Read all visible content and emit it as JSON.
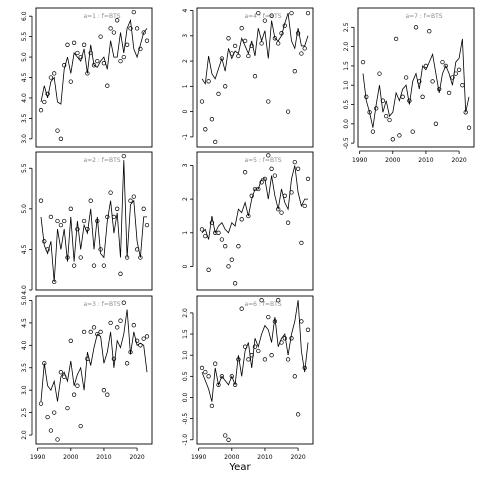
{
  "chart_data": {
    "type": "scatter",
    "xlabel": "Year",
    "x_ticks": [
      1990,
      2000,
      2010,
      2020
    ],
    "panels": [
      {
        "label": "a=1 : f=BTS",
        "ylim": [
          2.8,
          6.2
        ],
        "y_ticks": [
          3.0,
          3.5,
          4.0,
          4.5,
          5.0,
          5.5,
          6.0
        ],
        "x": [
          1991,
          1992,
          1993,
          1994,
          1995,
          1996,
          1997,
          1998,
          1999,
          2000,
          2001,
          2002,
          2003,
          2004,
          2005,
          2006,
          2007,
          2008,
          2009,
          2010,
          2011,
          2012,
          2013,
          2014,
          2015,
          2016,
          2017,
          2018,
          2019,
          2020,
          2021,
          2022,
          2023
        ],
        "fit": [
          3.9,
          4.3,
          4.0,
          4.4,
          4.5,
          3.9,
          3.85,
          4.7,
          5.0,
          4.6,
          5.1,
          5.0,
          4.9,
          5.2,
          4.6,
          5.3,
          4.8,
          4.75,
          4.9,
          5.0,
          4.7,
          5.4,
          5.0,
          5.0,
          5.6,
          5.1,
          5.7,
          5.9,
          5.2,
          5.0,
          5.3,
          5.6,
          5.7
        ],
        "observed": [
          3.7,
          3.9,
          4.1,
          4.5,
          4.6,
          3.2,
          3.0,
          4.8,
          5.3,
          4.4,
          5.35,
          5.1,
          5.0,
          5.3,
          4.6,
          5.1,
          4.8,
          4.9,
          5.5,
          4.85,
          4.3,
          5.7,
          5.6,
          5.9,
          4.9,
          5.0,
          5.3,
          5.7,
          6.1,
          5.7,
          5.2,
          5.6,
          5.4
        ]
      },
      {
        "label": "a=2 : f=BTS",
        "ylim": [
          4.0,
          5.7
        ],
        "y_ticks": [
          4.0,
          4.5,
          5.0,
          5.5
        ],
        "x": [
          1991,
          1992,
          1993,
          1994,
          1995,
          1996,
          1997,
          1998,
          1999,
          2000,
          2001,
          2002,
          2003,
          2004,
          2005,
          2006,
          2007,
          2008,
          2009,
          2010,
          2011,
          2012,
          2013,
          2014,
          2015,
          2016,
          2017,
          2018,
          2019,
          2020,
          2021,
          2022,
          2023
        ],
        "fit": [
          4.9,
          4.55,
          4.45,
          4.6,
          4.1,
          4.75,
          4.5,
          4.75,
          4.35,
          4.9,
          4.35,
          4.85,
          4.5,
          4.8,
          4.7,
          5.0,
          4.5,
          4.9,
          4.45,
          4.4,
          4.85,
          5.1,
          4.7,
          4.95,
          4.4,
          5.6,
          4.4,
          5.05,
          5.1,
          4.6,
          4.4,
          4.9,
          4.9
        ],
        "observed": [
          5.1,
          4.6,
          4.5,
          4.9,
          4.1,
          4.85,
          4.8,
          4.85,
          4.4,
          5.0,
          4.3,
          4.75,
          4.4,
          4.85,
          4.75,
          5.1,
          4.3,
          4.85,
          4.5,
          4.3,
          4.9,
          5.2,
          4.9,
          5.0,
          4.2,
          5.65,
          4.4,
          5.1,
          5.15,
          4.5,
          4.4,
          5.0,
          4.8
        ]
      },
      {
        "label": "a=3 : f=BTS",
        "ylim": [
          1.8,
          5.1
        ],
        "y_ticks": [
          2.0,
          2.5,
          3.0,
          3.5,
          4.0,
          4.5,
          5.0
        ],
        "x": [
          1991,
          1992,
          1993,
          1994,
          1995,
          1996,
          1997,
          1998,
          1999,
          2000,
          2001,
          2002,
          2003,
          2004,
          2005,
          2006,
          2007,
          2008,
          2009,
          2010,
          2011,
          2012,
          2013,
          2014,
          2015,
          2016,
          2017,
          2018,
          2019,
          2020,
          2021,
          2022,
          2023
        ],
        "fit": [
          2.75,
          3.6,
          3.1,
          3.0,
          3.2,
          2.75,
          3.3,
          3.4,
          3.2,
          3.65,
          3.1,
          3.35,
          3.5,
          3.0,
          3.85,
          3.55,
          3.95,
          4.25,
          4.2,
          3.6,
          3.85,
          4.3,
          3.5,
          4.1,
          3.95,
          4.25,
          4.8,
          3.8,
          4.3,
          4.0,
          4.05,
          4.0,
          3.4
        ],
        "observed": [
          2.7,
          3.6,
          2.4,
          2.1,
          2.5,
          1.9,
          3.4,
          3.3,
          2.6,
          4.1,
          2.9,
          3.1,
          2.2,
          4.3,
          3.7,
          4.3,
          4.4,
          4.25,
          4.3,
          3.0,
          2.9,
          4.5,
          3.7,
          4.4,
          4.55,
          4.95,
          3.6,
          3.85,
          4.45,
          4.1,
          4.0,
          4.15,
          4.2
        ]
      },
      {
        "label": "a=4 : f=BTS",
        "ylim": [
          -1.4,
          4.1
        ],
        "y_ticks": [
          -1,
          0,
          1,
          2,
          3,
          4
        ],
        "x": [
          1991,
          1992,
          1993,
          1994,
          1995,
          1996,
          1997,
          1998,
          1999,
          2000,
          2001,
          2002,
          2003,
          2004,
          2005,
          2006,
          2007,
          2008,
          2009,
          2010,
          2011,
          2012,
          2013,
          2014,
          2015,
          2016,
          2017,
          2018,
          2019,
          2020,
          2021,
          2022,
          2023
        ],
        "fit": [
          1.3,
          1.1,
          2.2,
          1.5,
          1.3,
          1.7,
          2.1,
          1.6,
          2.5,
          2.1,
          2.4,
          2.3,
          2.9,
          2.6,
          2.3,
          2.8,
          2.2,
          3.3,
          2.8,
          3.2,
          2.1,
          3.6,
          2.9,
          2.8,
          3.0,
          3.5,
          3.9,
          2.8,
          2.5,
          3.3,
          2.6,
          2.6,
          3.0
        ],
        "observed": [
          0.4,
          -0.7,
          1.2,
          -0.3,
          -1.2,
          0.7,
          2.1,
          1.0,
          2.9,
          2.3,
          2.6,
          2.2,
          3.3,
          2.8,
          2.2,
          2.6,
          1.4,
          3.9,
          2.7,
          3.6,
          0.4,
          3.8,
          2.9,
          2.7,
          3.1,
          3.4,
          0.0,
          3.9,
          1.6,
          3.1,
          2.3,
          2.5,
          3.9
        ]
      },
      {
        "label": "a=5 : f=BTS",
        "ylim": [
          -0.7,
          3.4
        ],
        "y_ticks": [
          0,
          1,
          2,
          3
        ],
        "x": [
          1991,
          1992,
          1993,
          1994,
          1995,
          1996,
          1997,
          1998,
          1999,
          2000,
          2001,
          2002,
          2003,
          2004,
          2005,
          2006,
          2007,
          2008,
          2009,
          2010,
          2011,
          2012,
          2013,
          2014,
          2015,
          2016,
          2017,
          2018,
          2019,
          2020,
          2021,
          2022,
          2023
        ],
        "fit": [
          1.0,
          1.1,
          0.8,
          1.5,
          1.0,
          1.2,
          1.3,
          1.1,
          1.0,
          1.3,
          1.2,
          1.7,
          1.6,
          1.9,
          1.5,
          2.0,
          2.3,
          2.3,
          2.6,
          2.6,
          2.0,
          2.7,
          2.1,
          1.7,
          2.3,
          1.9,
          1.7,
          2.6,
          3.0,
          2.2,
          1.8,
          2.0,
          2.0
        ],
        "observed": [
          1.1,
          0.9,
          -0.1,
          1.3,
          1.0,
          1.0,
          0.8,
          0.6,
          0.0,
          0.2,
          -0.5,
          0.6,
          1.4,
          2.8,
          1.5,
          2.1,
          2.3,
          2.3,
          2.5,
          2.6,
          3.3,
          2.9,
          2.7,
          1.7,
          1.6,
          2.1,
          1.3,
          2.2,
          3.1,
          2.9,
          0.7,
          1.8,
          2.6
        ]
      },
      {
        "label": "a=6 : f=BTS",
        "ylim": [
          -1.1,
          2.4
        ],
        "y_ticks": [
          -1.0,
          -0.5,
          0.0,
          0.5,
          1.0,
          1.5,
          2.0
        ],
        "x": [
          1991,
          1992,
          1993,
          1994,
          1995,
          1996,
          1997,
          1998,
          1999,
          2000,
          2001,
          2002,
          2003,
          2004,
          2005,
          2006,
          2007,
          2008,
          2009,
          2010,
          2011,
          2012,
          2013,
          2014,
          2015,
          2016,
          2017,
          2018,
          2019,
          2020,
          2021,
          2022,
          2023
        ],
        "fit": [
          0.6,
          0.4,
          0.2,
          -0.1,
          0.7,
          0.3,
          0.5,
          0.4,
          0.3,
          0.5,
          0.3,
          1.0,
          0.5,
          1.1,
          1.3,
          0.7,
          1.4,
          1.2,
          1.5,
          1.7,
          1.6,
          1.3,
          1.9,
          1.2,
          1.4,
          1.5,
          1.0,
          1.5,
          1.8,
          2.3,
          1.1,
          0.6,
          1.3
        ],
        "observed": [
          0.7,
          0.6,
          0.5,
          -0.2,
          0.8,
          0.3,
          0.5,
          -0.9,
          -1.0,
          0.5,
          0.3,
          0.9,
          2.1,
          1.2,
          0.9,
          1.0,
          1.2,
          1.1,
          2.3,
          0.9,
          1.9,
          1.0,
          1.8,
          2.3,
          1.3,
          1.4,
          0.9,
          1.4,
          0.5,
          -0.4,
          1.8,
          0.7,
          1.6
        ]
      },
      {
        "label": "a=7 : f=BTS",
        "ylim": [
          -0.6,
          3.0
        ],
        "y_ticks": [
          -0.5,
          0.0,
          0.5,
          1.0,
          1.5,
          2.0,
          2.5
        ],
        "x": [
          1991,
          1992,
          1993,
          1994,
          1995,
          1996,
          1997,
          1998,
          1999,
          2000,
          2001,
          2002,
          2003,
          2004,
          2005,
          2006,
          2007,
          2008,
          2009,
          2010,
          2011,
          2012,
          2013,
          2014,
          2015,
          2016,
          2017,
          2018,
          2019,
          2020,
          2021,
          2022,
          2023
        ],
        "fit": [
          1.3,
          0.6,
          0.3,
          -0.1,
          0.5,
          1.0,
          0.3,
          0.6,
          0.2,
          0.3,
          0.8,
          0.6,
          0.9,
          1.0,
          0.5,
          1.1,
          1.3,
          0.9,
          1.5,
          1.4,
          1.6,
          1.8,
          1.3,
          0.8,
          1.3,
          1.5,
          1.3,
          1.0,
          1.6,
          1.7,
          2.2,
          0.3,
          0.7
        ],
        "observed": [
          1.6,
          0.7,
          0.3,
          -0.2,
          0.4,
          1.3,
          0.6,
          0.2,
          0.1,
          -0.4,
          2.2,
          -0.3,
          0.7,
          1.2,
          0.6,
          -0.2,
          2.5,
          1.1,
          0.7,
          1.5,
          2.4,
          1.1,
          0.0,
          0.9,
          1.6,
          1.5,
          0.8,
          1.2,
          1.3,
          1.4,
          1.0,
          0.3,
          -0.1
        ]
      }
    ]
  }
}
